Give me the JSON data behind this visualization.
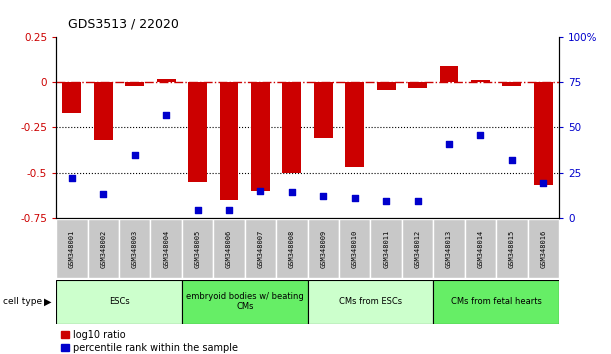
{
  "title": "GDS3513 / 22020",
  "samples": [
    "GSM348001",
    "GSM348002",
    "GSM348003",
    "GSM348004",
    "GSM348005",
    "GSM348006",
    "GSM348007",
    "GSM348008",
    "GSM348009",
    "GSM348010",
    "GSM348011",
    "GSM348012",
    "GSM348013",
    "GSM348014",
    "GSM348015",
    "GSM348016"
  ],
  "log10_ratio": [
    -0.17,
    -0.32,
    -0.02,
    0.02,
    -0.55,
    -0.65,
    -0.6,
    -0.5,
    -0.31,
    -0.47,
    -0.04,
    -0.03,
    0.09,
    0.01,
    -0.02,
    -0.57
  ],
  "percentile_rank": [
    22,
    13,
    35,
    57,
    4,
    4,
    15,
    14,
    12,
    11,
    9,
    9,
    41,
    46,
    32,
    19
  ],
  "cell_type_groups": [
    {
      "label": "ESCs",
      "start": 0,
      "end": 3,
      "color": "#ccffcc"
    },
    {
      "label": "embryoid bodies w/ beating\nCMs",
      "start": 4,
      "end": 7,
      "color": "#66ee66"
    },
    {
      "label": "CMs from ESCs",
      "start": 8,
      "end": 11,
      "color": "#ccffcc"
    },
    {
      "label": "CMs from fetal hearts",
      "start": 12,
      "end": 15,
      "color": "#66ee66"
    }
  ],
  "bar_color": "#cc0000",
  "marker_color": "#0000cc",
  "hline_color": "#cc0000",
  "left_ylim": [
    -0.75,
    0.25
  ],
  "right_ylim": [
    0,
    100
  ],
  "left_yticks": [
    -0.75,
    -0.5,
    -0.25,
    0,
    0.25
  ],
  "right_yticks": [
    0,
    25,
    50,
    75,
    100
  ],
  "dotted_lines": [
    -0.25,
    -0.5
  ],
  "plot_bg": "#ffffff",
  "label_bg": "#c8c8c8"
}
